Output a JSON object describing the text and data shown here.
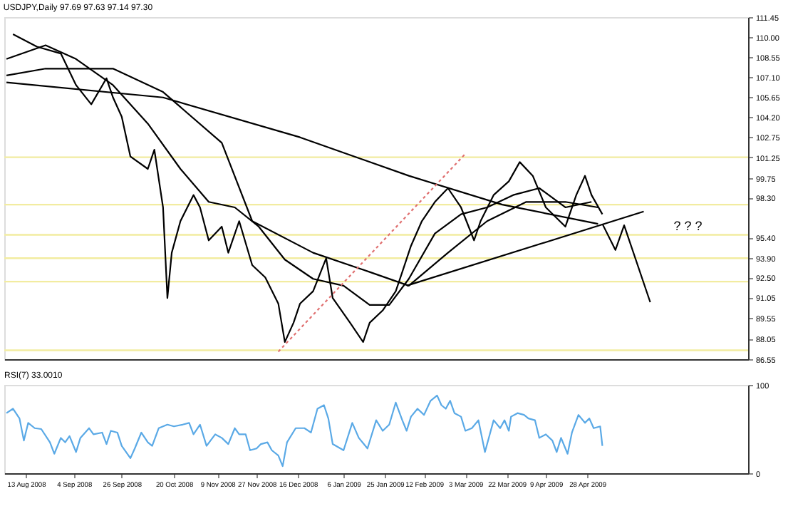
{
  "chart_data": [
    {
      "type": "line",
      "title": "USDJPY,Daily  97.69 97.63 97.14 97.30",
      "xlim": [
        "2008-08-03",
        "2009-07-11"
      ],
      "ylim": [
        86.55,
        111.45
      ],
      "yticks": [
        {
          "value": 111.45,
          "label": "111.45"
        },
        {
          "value": 110.0,
          "label": "110.00"
        },
        {
          "value": 108.55,
          "label": "108.55"
        },
        {
          "value": 107.1,
          "label": "107.10"
        },
        {
          "value": 105.65,
          "label": "105.65"
        },
        {
          "value": 104.2,
          "label": "104.20"
        },
        {
          "value": 102.75,
          "label": "102.75"
        },
        {
          "value": 101.25,
          "label": "101.25"
        },
        {
          "value": 99.75,
          "label": "99.75"
        },
        {
          "value": 98.3,
          "label": "98.30"
        },
        {
          "value": 95.4,
          "label": "95.40"
        },
        {
          "value": 93.9,
          "label": "93.90"
        },
        {
          "value": 92.5,
          "label": "92.50"
        },
        {
          "value": 91.05,
          "label": "91.05"
        },
        {
          "value": 89.55,
          "label": "89.55"
        },
        {
          "value": 88.05,
          "label": "88.05"
        },
        {
          "value": 86.55,
          "label": "86.55"
        }
      ],
      "tick_labels": "y",
      "grid": false,
      "series": [
        {
          "color": "#000000",
          "x": [
            "2008-08-07",
            "2008-08-18",
            "2008-08-29",
            "2008-09-05",
            "2008-09-12",
            "2008-09-19",
            "2008-09-22",
            "2008-09-26",
            "2008-09-30",
            "2008-10-08",
            "2008-10-11",
            "2008-10-15",
            "2008-10-17",
            "2008-10-19",
            "2008-10-23",
            "2008-10-29",
            "2008-11-01",
            "2008-11-05",
            "2008-11-11",
            "2008-11-14",
            "2008-11-19",
            "2008-11-25",
            "2008-12-01",
            "2008-12-07",
            "2008-12-10",
            "2008-12-14",
            "2008-12-17",
            "2008-12-23",
            "2008-12-29",
            "2009-01-01",
            "2009-01-09",
            "2009-01-15",
            "2009-01-18",
            "2009-01-24",
            "2009-01-30",
            "2009-02-02",
            "2009-02-06",
            "2009-02-11",
            "2009-02-17",
            "2009-02-23",
            "2009-03-01",
            "2009-03-07",
            "2009-03-10",
            "2009-03-16",
            "2009-03-23",
            "2009-03-28",
            "2009-04-03",
            "2009-04-09",
            "2009-04-18",
            "2009-04-23",
            "2009-04-27",
            "2009-04-30",
            "2009-05-05"
          ],
          "values": [
            110.2,
            109.3,
            108.8,
            106.5,
            105.1,
            107.0,
            105.6,
            104.2,
            101.3,
            100.4,
            101.8,
            97.6,
            91.0,
            94.3,
            96.6,
            98.5,
            97.6,
            95.2,
            96.2,
            94.3,
            96.6,
            93.4,
            92.5,
            90.6,
            87.8,
            89.2,
            90.6,
            91.5,
            93.9,
            91.0,
            89.2,
            87.8,
            89.2,
            90.1,
            91.5,
            92.9,
            94.8,
            96.6,
            98.0,
            99.0,
            97.6,
            95.2,
            96.6,
            98.5,
            99.5,
            100.9,
            99.9,
            97.6,
            96.2,
            98.5,
            99.9,
            98.5,
            97.1
          ]
        },
        {
          "color": "#000000",
          "x": [
            "2008-08-04",
            "2008-08-22",
            "2008-09-05",
            "2008-09-22",
            "2008-10-08",
            "2008-10-23",
            "2008-11-05",
            "2008-11-17",
            "2008-11-28",
            "2008-12-10",
            "2008-12-23",
            "2009-01-06",
            "2009-01-18",
            "2009-01-27",
            "2009-02-05",
            "2009-02-17",
            "2009-03-01",
            "2009-03-13",
            "2009-03-25",
            "2009-04-06",
            "2009-04-18",
            "2009-04-30"
          ],
          "values": [
            108.4,
            109.4,
            108.4,
            106.5,
            103.7,
            100.4,
            98.0,
            97.6,
            96.2,
            93.8,
            92.4,
            91.9,
            90.5,
            90.5,
            92.4,
            95.7,
            97.1,
            97.6,
            98.5,
            99.0,
            97.6,
            98.0
          ]
        },
        {
          "color": "#000000",
          "x": [
            "2008-08-04",
            "2008-08-22",
            "2008-09-22",
            "2008-10-15",
            "2008-11-11",
            "2008-11-25",
            "2008-12-23",
            "2009-01-18",
            "2009-02-05",
            "2009-02-23",
            "2009-03-13",
            "2009-03-31",
            "2009-04-18",
            "2009-05-03"
          ],
          "values": [
            107.2,
            107.7,
            107.7,
            106.0,
            102.3,
            96.6,
            94.3,
            92.9,
            91.9,
            94.3,
            96.6,
            98.0,
            98.0,
            97.6
          ]
        },
        {
          "color": "#000000",
          "x": [
            "2008-08-04",
            "2008-10-15",
            "2008-12-17",
            "2009-02-05",
            "2009-03-20",
            "2009-05-03"
          ],
          "values": [
            106.7,
            105.6,
            102.7,
            99.9,
            97.8,
            96.4
          ]
        },
        {
          "color": "#000000",
          "x": [
            "2009-02-04",
            "2009-05-24"
          ],
          "values": [
            91.9,
            97.3
          ]
        },
        {
          "color": "#000000",
          "x": [
            "2009-05-05",
            "2009-05-11",
            "2009-05-15",
            "2009-05-27"
          ],
          "values": [
            96.4,
            94.5,
            96.3,
            90.7
          ]
        },
        {
          "color": "#e07070",
          "line_style": "dotted",
          "x": [
            "2008-12-07",
            "2009-03-03"
          ],
          "values": [
            87.1,
            101.5
          ]
        }
      ],
      "ref_lines": [
        {
          "axis": "y",
          "value": 101.25,
          "color": "#f2eca0"
        },
        {
          "axis": "y",
          "value": 97.8,
          "color": "#f2eca0"
        },
        {
          "axis": "y",
          "value": 95.6,
          "color": "#f2eca0"
        },
        {
          "axis": "y",
          "value": 93.9,
          "color": "#f2eca0"
        },
        {
          "axis": "y",
          "value": 92.2,
          "color": "#f2eca0"
        },
        {
          "axis": "y",
          "value": 87.2,
          "color": "#f2eca0"
        }
      ],
      "annotations": [
        "? ? ?"
      ]
    },
    {
      "type": "line",
      "title": "RSI(7) 33.0010",
      "xlim": [
        "2008-08-03",
        "2009-07-11"
      ],
      "ylim": [
        0,
        100
      ],
      "yticks": [
        0,
        100
      ],
      "xticks": [
        {
          "value": "2008-08-13",
          "label": "13 Aug 2008"
        },
        {
          "value": "2008-09-04",
          "label": "4 Sep 2008"
        },
        {
          "value": "2008-09-26",
          "label": "26 Sep 2008"
        },
        {
          "value": "2008-10-20",
          "label": "20 Oct 2008"
        },
        {
          "value": "2008-11-09",
          "label": "9 Nov 2008"
        },
        {
          "value": "2008-11-27",
          "label": "27 Nov 2008"
        },
        {
          "value": "2008-12-16",
          "label": "16 Dec 2008"
        },
        {
          "value": "2009-01-06",
          "label": "6 Jan 2009"
        },
        {
          "value": "2009-01-25",
          "label": "25 Jan 2009"
        },
        {
          "value": "2009-02-12",
          "label": "12 Feb 2009"
        },
        {
          "value": "2009-03-03",
          "label": "3 Mar 2009"
        },
        {
          "value": "2009-03-22",
          "label": "22 Mar 2009"
        },
        {
          "value": "2009-04-09",
          "label": "9 Apr 2009"
        },
        {
          "value": "2009-04-28",
          "label": "28 Apr 2009"
        }
      ],
      "grid": false,
      "series": [
        {
          "color": "#5aa9e6",
          "x": [
            "2008-08-04",
            "2008-08-07",
            "2008-08-10",
            "2008-08-12",
            "2008-08-14",
            "2008-08-17",
            "2008-08-20",
            "2008-08-24",
            "2008-08-26",
            "2008-08-29",
            "2008-08-31",
            "2008-09-02",
            "2008-09-05",
            "2008-09-07",
            "2008-09-11",
            "2008-09-13",
            "2008-09-17",
            "2008-09-19",
            "2008-09-21",
            "2008-09-24",
            "2008-09-26",
            "2008-09-30",
            "2008-10-02",
            "2008-10-05",
            "2008-10-08",
            "2008-10-10",
            "2008-10-13",
            "2008-10-17",
            "2008-10-20",
            "2008-10-24",
            "2008-10-27",
            "2008-10-29",
            "2008-11-01",
            "2008-11-04",
            "2008-11-08",
            "2008-11-11",
            "2008-11-14",
            "2008-11-17",
            "2008-11-19",
            "2008-11-22",
            "2008-11-24",
            "2008-11-27",
            "2008-11-29",
            "2008-12-02",
            "2008-12-04",
            "2008-12-07",
            "2008-12-09",
            "2008-12-11",
            "2008-12-15",
            "2008-12-19",
            "2008-12-22",
            "2008-12-25",
            "2008-12-28",
            "2008-12-30",
            "2009-01-01",
            "2009-01-06",
            "2009-01-10",
            "2009-01-13",
            "2009-01-17",
            "2009-01-21",
            "2009-01-24",
            "2009-01-27",
            "2009-01-30",
            "2009-02-02",
            "2009-02-04",
            "2009-02-06",
            "2009-02-09",
            "2009-02-12",
            "2009-02-15",
            "2009-02-18",
            "2009-02-20",
            "2009-02-22",
            "2009-02-24",
            "2009-02-26",
            "2009-03-01",
            "2009-03-03",
            "2009-03-06",
            "2009-03-09",
            "2009-03-12",
            "2009-03-14",
            "2009-03-16",
            "2009-03-19",
            "2009-03-21",
            "2009-03-23",
            "2009-03-24",
            "2009-03-27",
            "2009-03-30",
            "2009-04-01",
            "2009-04-04",
            "2009-04-06",
            "2009-04-09",
            "2009-04-12",
            "2009-04-14",
            "2009-04-16",
            "2009-04-19",
            "2009-04-21",
            "2009-04-24",
            "2009-04-27",
            "2009-04-29",
            "2009-05-01",
            "2009-05-04",
            "2009-05-05"
          ],
          "values": [
            68,
            73,
            62,
            37,
            57,
            51,
            50,
            35,
            22,
            40,
            35,
            42,
            24,
            40,
            51,
            44,
            46,
            33,
            48,
            46,
            31,
            17,
            28,
            46,
            35,
            31,
            51,
            55,
            53,
            55,
            57,
            44,
            55,
            31,
            44,
            40,
            33,
            51,
            44,
            44,
            26,
            28,
            33,
            35,
            26,
            20,
            8,
            35,
            51,
            51,
            46,
            73,
            77,
            62,
            33,
            26,
            57,
            40,
            28,
            60,
            48,
            55,
            80,
            60,
            48,
            64,
            73,
            66,
            82,
            88,
            77,
            73,
            82,
            68,
            64,
            48,
            51,
            60,
            24,
            42,
            60,
            51,
            60,
            48,
            64,
            68,
            66,
            62,
            60,
            40,
            44,
            37,
            24,
            40,
            22,
            46,
            66,
            57,
            62,
            51,
            53,
            31
          ]
        }
      ]
    }
  ]
}
